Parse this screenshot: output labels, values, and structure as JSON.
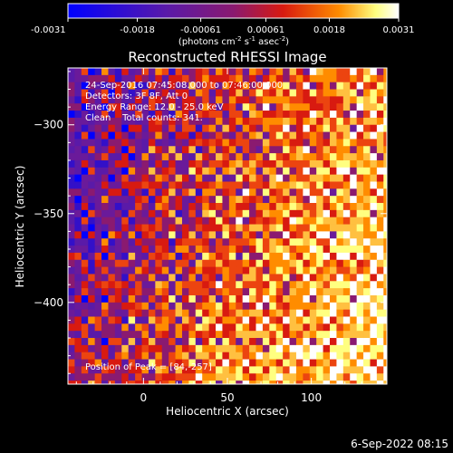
{
  "chart_data": {
    "type": "heatmap",
    "title": "Reconstructed RHESSI Image",
    "xlabel": "Heliocentric X (arcsec)",
    "ylabel": "Heliocentric Y (arcsec)",
    "xlim": [
      -45,
      145
    ],
    "ylim": [
      -446,
      -268
    ],
    "xticks": [
      0,
      50,
      100
    ],
    "yticks": [
      -300,
      -350,
      -400
    ],
    "pixel_size_arcsec": 4,
    "colorbar": {
      "range": [
        -0.0031,
        0.0031
      ],
      "tick_values": [
        -0.0031,
        -0.0018,
        -0.00061,
        0.00061,
        0.0018,
        0.0031
      ],
      "tick_labels": [
        "-0.0031",
        "-0.0018",
        "-0.00061",
        "0.00061",
        "0.0018",
        "0.0031"
      ],
      "label": "(photons cm",
      "label_sup1": "-2",
      "label_mid": " s",
      "label_sup2": "-1",
      "label_end": " asec",
      "label_sup3": "-2",
      "label_close": ")"
    },
    "annotations": [
      "24-Sep-2016 07:45:08.000 to 07:46:00.000",
      "Detectors: 3F 8F, Att 0",
      "Energy Range: 12.0 - 25.0 keV",
      "Clean    Total counts: 341."
    ],
    "peak_label": "Position of Peak = [84,-257]",
    "colors": {
      "blue": "#0000ff",
      "purple": "#5a1aa8",
      "red": "#d81a10",
      "orange": "#ff8c00",
      "yellow": "#ffff80",
      "white": "#ffffff"
    }
  },
  "footer": {
    "timestamp": "6-Sep-2022 08:15"
  }
}
